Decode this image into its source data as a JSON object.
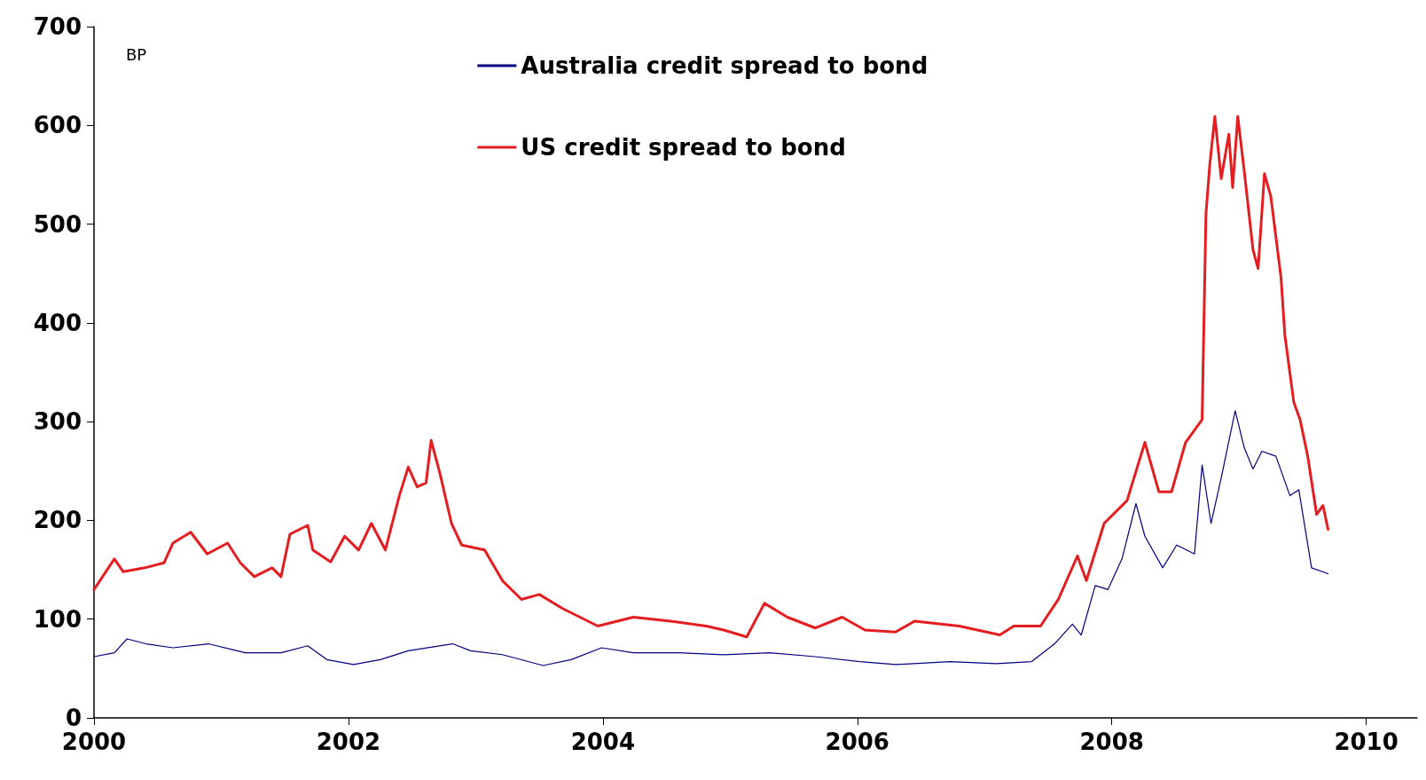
{
  "chart_data": {
    "type": "line",
    "ylabel": "BP",
    "xlim": [
      2000,
      2010.4
    ],
    "xticks": [
      2000,
      2002,
      2004,
      2006,
      2008,
      2010
    ],
    "ylim": [
      0,
      700
    ],
    "yticks": [
      0,
      100,
      200,
      300,
      400,
      500,
      600,
      700
    ],
    "grid": false,
    "legend": "top",
    "marker": "none",
    "line_style": "solid",
    "series": [
      {
        "name": "Australia credit spread to bond",
        "color": "#000080",
        "x": [
          2000,
          2000.16,
          2000.26,
          2000.41,
          2000.62,
          2000.9,
          2001.19,
          2001.47,
          2001.68,
          2001.83,
          2002.04,
          2002.25,
          2002.47,
          2002.82,
          2002.96,
          2003.21,
          2003.53,
          2003.75,
          2003.99,
          2004.24,
          2004.6,
          2004.95,
          2005.31,
          2005.67,
          2006.02,
          2006.3,
          2006.73,
          2007.09,
          2007.37,
          2007.55,
          2007.69,
          2007.76,
          2007.87,
          2007.97,
          2008.08,
          2008.19,
          2008.26,
          2008.4,
          2008.51,
          2008.65,
          2008.71,
          2008.78,
          2008.86,
          2008.97,
          2009.04,
          2009.11,
          2009.18,
          2009.29,
          2009.4,
          2009.47,
          2009.57,
          2009.7
        ],
        "values": [
          62,
          66,
          80,
          75,
          71,
          75,
          66,
          66,
          73,
          59,
          54,
          59,
          68,
          75,
          68,
          64,
          53,
          59,
          71,
          66,
          66,
          64,
          66,
          62,
          57,
          54,
          57,
          55,
          57,
          75,
          95,
          84,
          134,
          130,
          161,
          217,
          184,
          152,
          175,
          166,
          256,
          197,
          243,
          311,
          274,
          252,
          270,
          265,
          225,
          231,
          152,
          146
        ]
      },
      {
        "name": "US credit spread to bond",
        "color": "#e41e20",
        "x": [
          2000,
          2000.16,
          2000.23,
          2000.4,
          2000.55,
          2000.62,
          2000.76,
          2000.89,
          2001.05,
          2001.15,
          2001.26,
          2001.4,
          2001.47,
          2001.54,
          2001.68,
          2001.72,
          2001.86,
          2001.97,
          2002.08,
          2002.18,
          2002.29,
          2002.4,
          2002.47,
          2002.54,
          2002.61,
          2002.65,
          2002.72,
          2002.81,
          2002.89,
          2003.07,
          2003.21,
          2003.36,
          2003.5,
          2003.68,
          2003.96,
          2004.24,
          2004.53,
          2004.81,
          2004.95,
          2005.13,
          2005.27,
          2005.45,
          2005.67,
          2005.88,
          2006.06,
          2006.3,
          2006.45,
          2006.8,
          2007.12,
          2007.23,
          2007.44,
          2007.58,
          2007.73,
          2007.8,
          2007.94,
          2008.12,
          2008.26,
          2008.37,
          2008.47,
          2008.58,
          2008.71,
          2008.74,
          2008.77,
          2008.81,
          2008.86,
          2008.92,
          2008.95,
          2008.99,
          2009.04,
          2009.11,
          2009.15,
          2009.2,
          2009.25,
          2009.33,
          2009.36,
          2009.43,
          2009.48,
          2009.54,
          2009.61,
          2009.66,
          2009.7
        ],
        "values": [
          130,
          161,
          148,
          152,
          157,
          177,
          188,
          166,
          177,
          157,
          143,
          152,
          143,
          186,
          195,
          170,
          158,
          184,
          170,
          197,
          170,
          225,
          254,
          234,
          238,
          281,
          247,
          197,
          175,
          170,
          139,
          120,
          125,
          111,
          93,
          102,
          98,
          93,
          89,
          82,
          116,
          102,
          91,
          102,
          89,
          87,
          98,
          93,
          84,
          93,
          93,
          120,
          164,
          139,
          197,
          220,
          279,
          229,
          229,
          279,
          302,
          510,
          560,
          609,
          546,
          591,
          537,
          609,
          555,
          474,
          455,
          551,
          528,
          446,
          388,
          320,
          302,
          265,
          206,
          215,
          191
        ]
      }
    ]
  }
}
